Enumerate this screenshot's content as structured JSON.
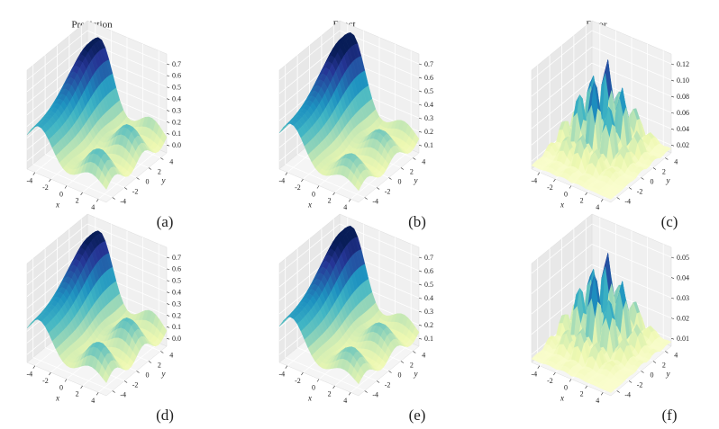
{
  "column_titles": [
    "Prediction",
    "Exact",
    "Error"
  ],
  "panels": [
    {
      "caption": "(a)",
      "z_ticks": [
        {
          "value": 0,
          "label": "0.0"
        },
        0.1,
        0.2,
        0.3,
        0.4,
        0.5,
        0.6,
        0.7
      ],
      "x_ticks": [
        -4,
        -2,
        0,
        2,
        4
      ],
      "y_ticks": [
        -4,
        -2,
        0,
        2,
        4
      ],
      "x_label": "x",
      "y_label": "y"
    },
    {
      "caption": "(b)",
      "z_ticks": [
        0.1,
        0.2,
        0.3,
        0.4,
        0.5,
        0.6,
        0.7
      ],
      "x_ticks": [
        -4,
        -2,
        0,
        2,
        4
      ],
      "y_ticks": [
        -4,
        -2,
        0,
        2,
        4
      ],
      "x_label": "x",
      "y_label": "y"
    },
    {
      "caption": "(c)",
      "z_ticks": [
        0.02,
        0.04,
        0.06,
        0.08,
        {
          "value": 0.1,
          "label": "0.10"
        },
        0.12
      ],
      "x_ticks": [
        -4,
        -2,
        0,
        2,
        4
      ],
      "y_ticks": [
        -4,
        -2,
        0,
        2,
        4
      ],
      "x_label": "x",
      "y_label": "y"
    },
    {
      "caption": "(d)",
      "z_ticks": [
        {
          "value": 0,
          "label": "0.0"
        },
        0.1,
        0.2,
        0.3,
        0.4,
        0.5,
        0.6,
        0.7
      ],
      "x_ticks": [
        -4,
        -2,
        0,
        2,
        4
      ],
      "y_ticks": [
        -4,
        -2,
        0,
        2,
        4
      ],
      "x_label": "x",
      "y_label": "y"
    },
    {
      "caption": "(e)",
      "z_ticks": [
        0.1,
        0.2,
        0.3,
        0.4,
        0.5,
        0.6,
        0.7
      ],
      "x_ticks": [
        -4,
        -2,
        0,
        2,
        4
      ],
      "y_ticks": [
        -4,
        -2,
        0,
        2,
        4
      ],
      "x_label": "x",
      "y_label": "y"
    },
    {
      "caption": "(f)",
      "z_ticks": [
        0.01,
        0.02,
        0.03,
        0.04,
        0.05
      ],
      "x_ticks": [
        -4,
        -2,
        0,
        2,
        4
      ],
      "y_ticks": [
        -4,
        -2,
        0,
        2,
        4
      ],
      "x_label": "x",
      "y_label": "y"
    }
  ]
}
